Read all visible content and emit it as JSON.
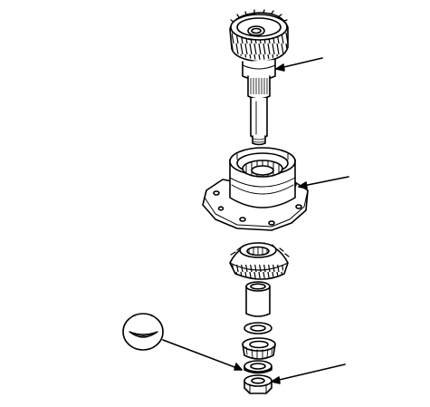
{
  "diagram": {
    "style": "exploded-view line drawing",
    "stroke_color": "#000000",
    "background": "#ffffff",
    "parts": [
      "helical-gear-shaft",
      "bearing-housing-flange",
      "bevel-gear",
      "spacer-sleeve",
      "thin-washer",
      "tapered-roller-bearing",
      "thrust-washer",
      "lock-nut"
    ],
    "callouts": [
      {
        "target": "helical-gear-shaft"
      },
      {
        "target": "bearing-housing-flange"
      },
      {
        "target": "thrust-washer"
      },
      {
        "target": "lock-nut"
      }
    ],
    "inset": {
      "depicts": "washer-cross-section"
    }
  }
}
